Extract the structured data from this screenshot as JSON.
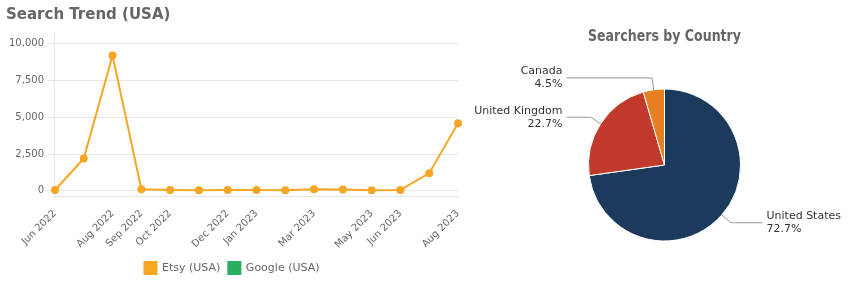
{
  "chart_data": [
    {
      "type": "line",
      "title": "Search Trend (USA)",
      "categories": [
        "Jun 2022",
        null,
        "Aug 2022",
        "Sep 2022",
        "Oct 2022",
        null,
        "Dec 2022",
        "Jan 2023",
        null,
        "Mar 2023",
        null,
        "May 2023",
        "Jun 2023",
        null,
        "Aug 2023"
      ],
      "series": [
        {
          "name": "Etsy (USA)",
          "color": "#F5A623",
          "marker": "circle",
          "values": [
            50,
            2200,
            9200,
            100,
            50,
            30,
            60,
            50,
            30,
            100,
            80,
            30,
            50,
            1200,
            4600
          ]
        },
        {
          "name": "Google (USA)",
          "color": "#27ae60",
          "values": [
            null,
            null,
            null,
            null,
            null,
            null,
            null,
            null,
            null,
            null,
            null,
            null,
            null,
            null,
            null
          ]
        }
      ],
      "ylim": [
        -400,
        10800
      ],
      "yticks": [
        0,
        {
          "value": 2500,
          "label": "2,500"
        },
        {
          "value": 5000,
          "label": "5,000"
        },
        {
          "value": 7500,
          "label": "7,500"
        },
        {
          "value": 10000,
          "label": "10,000"
        }
      ],
      "grid": true,
      "legend": "bottom"
    },
    {
      "type": "pie",
      "title": "Searchers by Country",
      "categories": [
        "United States",
        "United Kingdom",
        "Canada"
      ],
      "values": [
        72.7,
        22.7,
        4.5
      ],
      "value_labels": [
        "72.7%",
        "22.7%",
        "4.5%"
      ],
      "colors": [
        "#1B3A5C",
        "#C0392B",
        "#E67E22"
      ],
      "data_labels": true
    }
  ]
}
